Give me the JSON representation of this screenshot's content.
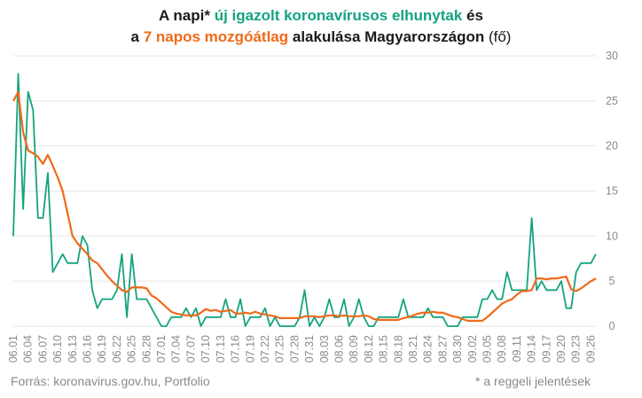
{
  "title": {
    "line1_a": "A napi* ",
    "line1_b": "új igazolt koronavírusos elhunytak",
    "line1_c": " és",
    "line2_a": "a ",
    "line2_b": "7 napos mozgóátlag",
    "line2_c": " alakulása Magyarországon",
    "line2_d": " (fő)"
  },
  "footer": {
    "source": "Forrás: koronavirus.gov.hu, Portfolio",
    "note": "* a reggeli jelentések"
  },
  "colors": {
    "daily": "#14a37f",
    "average": "#ef6a1a",
    "grid": "#e6e6e6",
    "text": "#8a8a8a"
  },
  "chart_data": {
    "type": "line",
    "x_start": "06.01",
    "x_end": "09.30",
    "xticks": [
      "06.01",
      "06.04",
      "06.07",
      "06.10",
      "06.13",
      "06.16",
      "06.19",
      "06.22",
      "06.25",
      "06.28",
      "07.01",
      "07.04",
      "07.07",
      "07.10",
      "07.13",
      "07.16",
      "07.19",
      "07.22",
      "07.25",
      "07.28",
      "07.31",
      "08.03",
      "08.06",
      "08.09",
      "08.12",
      "08.15",
      "08.18",
      "08.21",
      "08.24",
      "08.27",
      "08.30",
      "09.02",
      "09.05",
      "09.08",
      "09.11",
      "09.14",
      "09.17",
      "09.20",
      "09.23",
      "09.26"
    ],
    "yticks": [
      0,
      5,
      10,
      15,
      20,
      25,
      30
    ],
    "ylim": [
      0,
      30
    ],
    "y_axis_side": "right",
    "grid": true,
    "series": [
      {
        "key": "daily",
        "values": [
          10,
          28,
          13,
          26,
          24,
          12,
          12,
          17,
          6,
          7,
          8,
          7,
          7,
          7,
          10,
          9,
          4,
          2,
          3,
          3,
          3,
          4,
          8,
          1,
          8,
          3,
          3,
          3,
          2,
          1,
          0,
          0,
          1,
          1,
          1,
          2,
          1,
          2,
          0,
          1,
          1,
          1,
          1,
          3,
          1,
          1,
          3,
          0,
          1,
          1,
          1,
          2,
          0,
          1,
          0,
          0,
          0,
          0,
          1,
          4,
          0,
          1,
          0,
          1,
          3,
          1,
          1,
          3,
          0,
          1,
          3,
          1,
          0,
          0,
          1,
          1,
          1,
          1,
          1,
          3,
          1,
          1,
          1,
          1,
          2,
          1,
          1,
          1,
          0,
          0,
          0,
          1,
          1,
          1,
          1,
          3,
          3,
          4,
          3,
          3,
          6,
          4,
          4,
          4,
          4,
          12,
          4,
          5,
          4,
          4,
          4,
          5,
          2,
          2,
          6,
          7,
          7,
          7,
          8
        ]
      },
      {
        "key": "average",
        "values": [
          25,
          26,
          21.5,
          19.5,
          19.2,
          18.8,
          18,
          19,
          17.8,
          16.5,
          15,
          12.5,
          10,
          9.2,
          8.6,
          8,
          7.3,
          7,
          6.3,
          5.6,
          5,
          4.5,
          4,
          3.8,
          4.3,
          4.3,
          4.3,
          4.2,
          3.4,
          3.1,
          2.6,
          2.1,
          1.6,
          1.4,
          1.3,
          1.2,
          1.2,
          1.2,
          1.5,
          1.9,
          1.7,
          1.8,
          1.6,
          1.7,
          1.8,
          1.4,
          1.4,
          1.5,
          1.4,
          1.6,
          1.4,
          1.3,
          1.2,
          1.1,
          0.9,
          0.9,
          0.9,
          0.9,
          0.9,
          1.1,
          1.1,
          1.1,
          1.0,
          1.1,
          1.2,
          1.2,
          1.1,
          1.2,
          1.1,
          1.1,
          1.1,
          1.2,
          1.1,
          0.8,
          0.7,
          0.7,
          0.7,
          0.7,
          0.7,
          0.9,
          1.0,
          1.2,
          1.4,
          1.5,
          1.5,
          1.6,
          1.5,
          1.5,
          1.3,
          1.1,
          1.0,
          0.8,
          0.6,
          0.6,
          0.6,
          0.6,
          1.0,
          1.5,
          2.0,
          2.5,
          2.8,
          3.0,
          3.5,
          3.9,
          3.9,
          4.0,
          5.3,
          5.3,
          5.2,
          5.3,
          5.3,
          5.4,
          5.5,
          4.1,
          3.9,
          4.2,
          4.6,
          5.0,
          5.3
        ]
      }
    ]
  }
}
